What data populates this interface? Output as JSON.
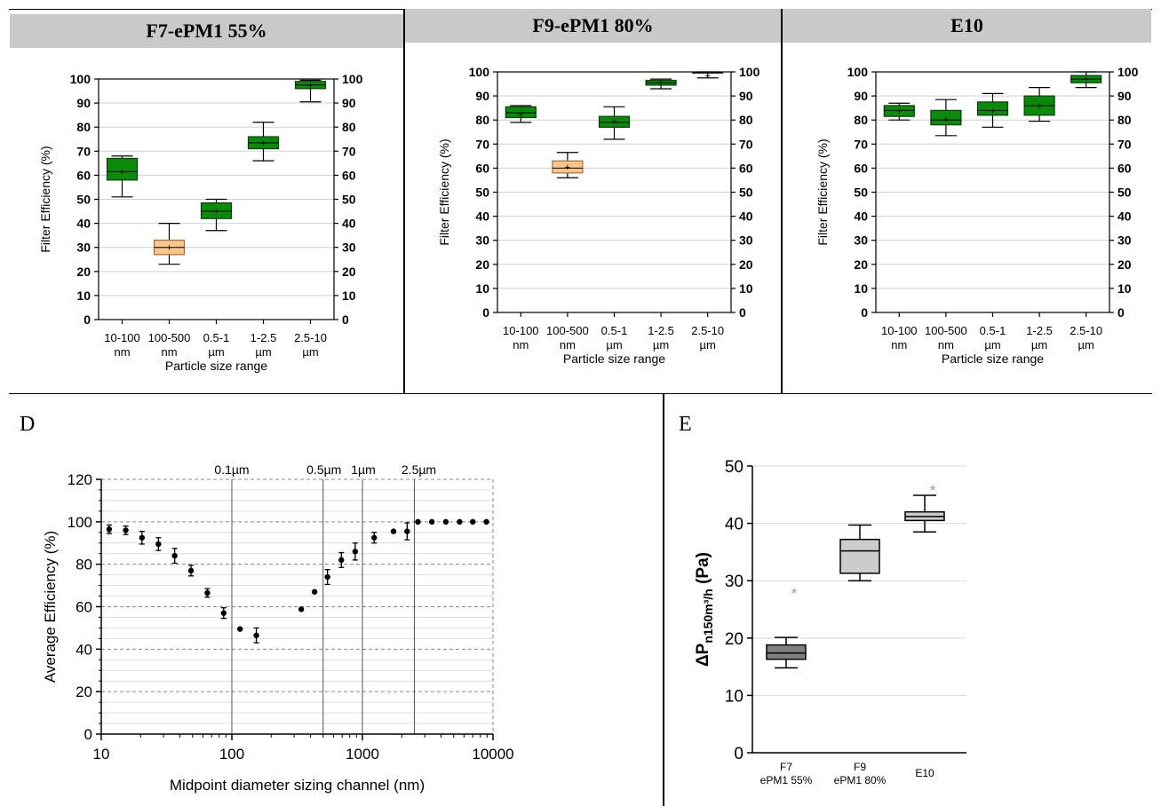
{
  "panels_top": [
    {
      "id": "f7",
      "title": "F7-ePM1 55%"
    },
    {
      "id": "f9",
      "title": "F9-ePM1 80%"
    },
    {
      "id": "e10",
      "title": "E10"
    }
  ],
  "panel_letters": {
    "d": "D",
    "e": "E"
  },
  "colors": {
    "green": "#0b8a0b",
    "green_edge": "#0a3d0a",
    "orange": "#fbc58c",
    "orange_edge": "#a0703c",
    "grid": "#c8c8c8",
    "box_gray_dark": "#808080",
    "box_gray_light": "#cccccc",
    "outlier": "#999999"
  },
  "chart_data": [
    {
      "type": "box",
      "title": "F7-ePM1 55%",
      "xlabel": "Particle size range",
      "ylabel": "Filter Efficiency (%)",
      "ylim": [
        0,
        100
      ],
      "yticks": [
        0,
        10,
        20,
        30,
        40,
        50,
        60,
        70,
        80,
        90,
        100
      ],
      "categories": [
        [
          "10-100",
          "nm"
        ],
        [
          "100-500",
          "nm"
        ],
        [
          "0.5-1",
          "µm"
        ],
        [
          "1-2.5",
          "µm"
        ],
        [
          "2.5-10",
          "µm"
        ]
      ],
      "boxes": [
        {
          "min": 51,
          "q1": 58,
          "median": 61.5,
          "q3": 67,
          "max": 68,
          "mean": 61.5,
          "color": "green"
        },
        {
          "min": 23,
          "q1": 27,
          "median": 30,
          "q3": 33,
          "max": 40,
          "mean": 30,
          "color": "orange"
        },
        {
          "min": 37,
          "q1": 42,
          "median": 45,
          "q3": 48.5,
          "max": 50,
          "mean": 45,
          "color": "green"
        },
        {
          "min": 66,
          "q1": 71,
          "median": 73.5,
          "q3": 76,
          "max": 82,
          "mean": 73.5,
          "color": "green"
        },
        {
          "min": 90.5,
          "q1": 96,
          "median": 97.5,
          "q3": 99,
          "max": 99.5,
          "mean": 97.5,
          "color": "green"
        }
      ]
    },
    {
      "type": "box",
      "title": "F9-ePM1 80%",
      "xlabel": "Particle size range",
      "ylabel": "Filter Efficiency (%)",
      "ylim": [
        0,
        100
      ],
      "yticks": [
        0,
        10,
        20,
        30,
        40,
        50,
        60,
        70,
        80,
        90,
        100
      ],
      "categories": [
        [
          "10-100",
          "nm"
        ],
        [
          "100-500",
          "nm"
        ],
        [
          "0.5-1",
          "µm"
        ],
        [
          "1-2.5",
          "µm"
        ],
        [
          "2.5-10",
          "µm"
        ]
      ],
      "boxes": [
        {
          "min": 79,
          "q1": 81,
          "median": 83,
          "q3": 85.5,
          "max": 86,
          "mean": 82.5,
          "color": "green"
        },
        {
          "min": 56,
          "q1": 58,
          "median": 60,
          "q3": 63,
          "max": 66.5,
          "mean": 60.5,
          "color": "orange"
        },
        {
          "min": 72,
          "q1": 77,
          "median": 79,
          "q3": 81.5,
          "max": 85.5,
          "mean": 79.5,
          "color": "green"
        },
        {
          "min": 93,
          "q1": 94.5,
          "median": 95.5,
          "q3": 96.5,
          "max": 97,
          "mean": 95.5,
          "color": "green"
        },
        {
          "min": 97.5,
          "q1": 99.5,
          "median": 99.8,
          "q3": 100,
          "max": 100,
          "mean": 98.5,
          "color": "green"
        }
      ]
    },
    {
      "type": "box",
      "title": "E10",
      "xlabel": "Particle size range",
      "ylabel": "Filter Efficiency (%)",
      "ylim": [
        0,
        100
      ],
      "yticks": [
        0,
        10,
        20,
        30,
        40,
        50,
        60,
        70,
        80,
        90,
        100
      ],
      "categories": [
        [
          "10-100",
          "nm"
        ],
        [
          "100-500",
          "nm"
        ],
        [
          "0.5-1",
          "µm"
        ],
        [
          "1-2.5",
          "µm"
        ],
        [
          "2.5-10",
          "µm"
        ]
      ],
      "boxes": [
        {
          "min": 80,
          "q1": 81.5,
          "median": 84,
          "q3": 86,
          "max": 87,
          "mean": 84,
          "color": "green"
        },
        {
          "min": 73.5,
          "q1": 78,
          "median": 80,
          "q3": 84,
          "max": 88.5,
          "mean": 80.5,
          "color": "green"
        },
        {
          "min": 77,
          "q1": 82,
          "median": 84,
          "q3": 87.5,
          "max": 91,
          "mean": 84,
          "color": "green"
        },
        {
          "min": 79.5,
          "q1": 82,
          "median": 86,
          "q3": 90,
          "max": 93.5,
          "mean": 86,
          "color": "green"
        },
        {
          "min": 93.5,
          "q1": 95.5,
          "median": 97,
          "q3": 98.5,
          "max": 100,
          "mean": 97,
          "color": "green"
        }
      ]
    },
    {
      "type": "scatter",
      "xlabel": "Midpoint diameter sizing channel (nm)",
      "ylabel": "Average Efficiency (%)",
      "xscale": "log",
      "xlim": [
        10,
        10000
      ],
      "ylim": [
        0,
        120
      ],
      "xticks": [
        10,
        100,
        1000,
        10000
      ],
      "xticklabels": [
        "10",
        "100",
        "1000",
        "10000"
      ],
      "yticks": [
        0,
        20,
        40,
        60,
        80,
        100,
        120
      ],
      "vlines": [
        {
          "x": 100,
          "label": "0.1µm"
        },
        {
          "x": 500,
          "label": "0.5µm"
        },
        {
          "x": 1000,
          "label": "1µm"
        },
        {
          "x": 2500,
          "label": "2.5µm"
        }
      ],
      "points": [
        {
          "x": 11.5,
          "y": 96.5,
          "err": 2
        },
        {
          "x": 15.4,
          "y": 96,
          "err": 2
        },
        {
          "x": 20.5,
          "y": 92.5,
          "err": 3
        },
        {
          "x": 27.4,
          "y": 89.5,
          "err": 3
        },
        {
          "x": 36.5,
          "y": 84,
          "err": 3.5
        },
        {
          "x": 48.7,
          "y": 77,
          "err": 2.5
        },
        {
          "x": 64.9,
          "y": 66.5,
          "err": 2
        },
        {
          "x": 86.6,
          "y": 57,
          "err": 2.5
        },
        {
          "x": 115.5,
          "y": 49.5,
          "err": 0
        },
        {
          "x": 154,
          "y": 46.5,
          "err": 3.5
        },
        {
          "x": 340,
          "y": 58.8,
          "err": 0
        },
        {
          "x": 430,
          "y": 67,
          "err": 0
        },
        {
          "x": 540,
          "y": 74,
          "err": 3.5
        },
        {
          "x": 690,
          "y": 82,
          "err": 3.5
        },
        {
          "x": 880,
          "y": 86,
          "err": 4
        },
        {
          "x": 1230,
          "y": 92.5,
          "err": 2.5
        },
        {
          "x": 1730,
          "y": 95.5,
          "err": 0
        },
        {
          "x": 2200,
          "y": 95.5,
          "err": 4
        },
        {
          "x": 2660,
          "y": 100,
          "err": 0
        },
        {
          "x": 3400,
          "y": 100,
          "err": 0
        },
        {
          "x": 4350,
          "y": 100,
          "err": 0
        },
        {
          "x": 5550,
          "y": 100,
          "err": 0
        },
        {
          "x": 7000,
          "y": 100,
          "err": 0
        },
        {
          "x": 8900,
          "y": 100,
          "err": 0
        }
      ]
    },
    {
      "type": "box",
      "ylabel_main": "ΔP",
      "ylabel_sub": "n150m³/h",
      "ylabel_unit": " (Pa)",
      "ylim": [
        0,
        50
      ],
      "yticks": [
        0,
        10,
        20,
        30,
        40,
        50
      ],
      "categories": [
        [
          "F7",
          "ePM1 55%"
        ],
        [
          "F9",
          "ePM1 80%"
        ],
        [
          "E10"
        ]
      ],
      "boxes": [
        {
          "min": 14.8,
          "q1": 16.3,
          "median": 17.4,
          "q3": 18.8,
          "max": 20.1,
          "outlier": 28,
          "color": "box_gray_dark"
        },
        {
          "min": 30,
          "q1": 31.3,
          "median": 35.2,
          "q3": 37.2,
          "max": 39.7,
          "color": "box_gray_light"
        },
        {
          "min": 38.5,
          "q1": 40.5,
          "median": 41.2,
          "q3": 42,
          "max": 44.9,
          "outlier": 46,
          "color": "box_gray_light"
        }
      ]
    }
  ]
}
